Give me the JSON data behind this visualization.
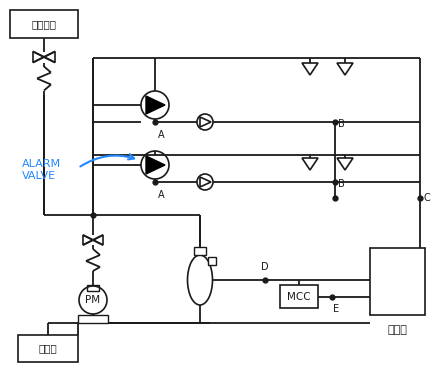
{
  "bg_color": "#ffffff",
  "line_color": "#1a1a1a",
  "blue_color": "#2288ff",
  "label_gogasujo": "고가수조",
  "label_jeosujo": "저수조",
  "label_alarm": "ALARM\nVALVE",
  "label_mcc": "MCC",
  "label_susin": "수신반",
  "label_pm": "PM",
  "label_A": "A",
  "label_B": "B",
  "label_C": "C",
  "label_D": "D",
  "label_E": "E"
}
